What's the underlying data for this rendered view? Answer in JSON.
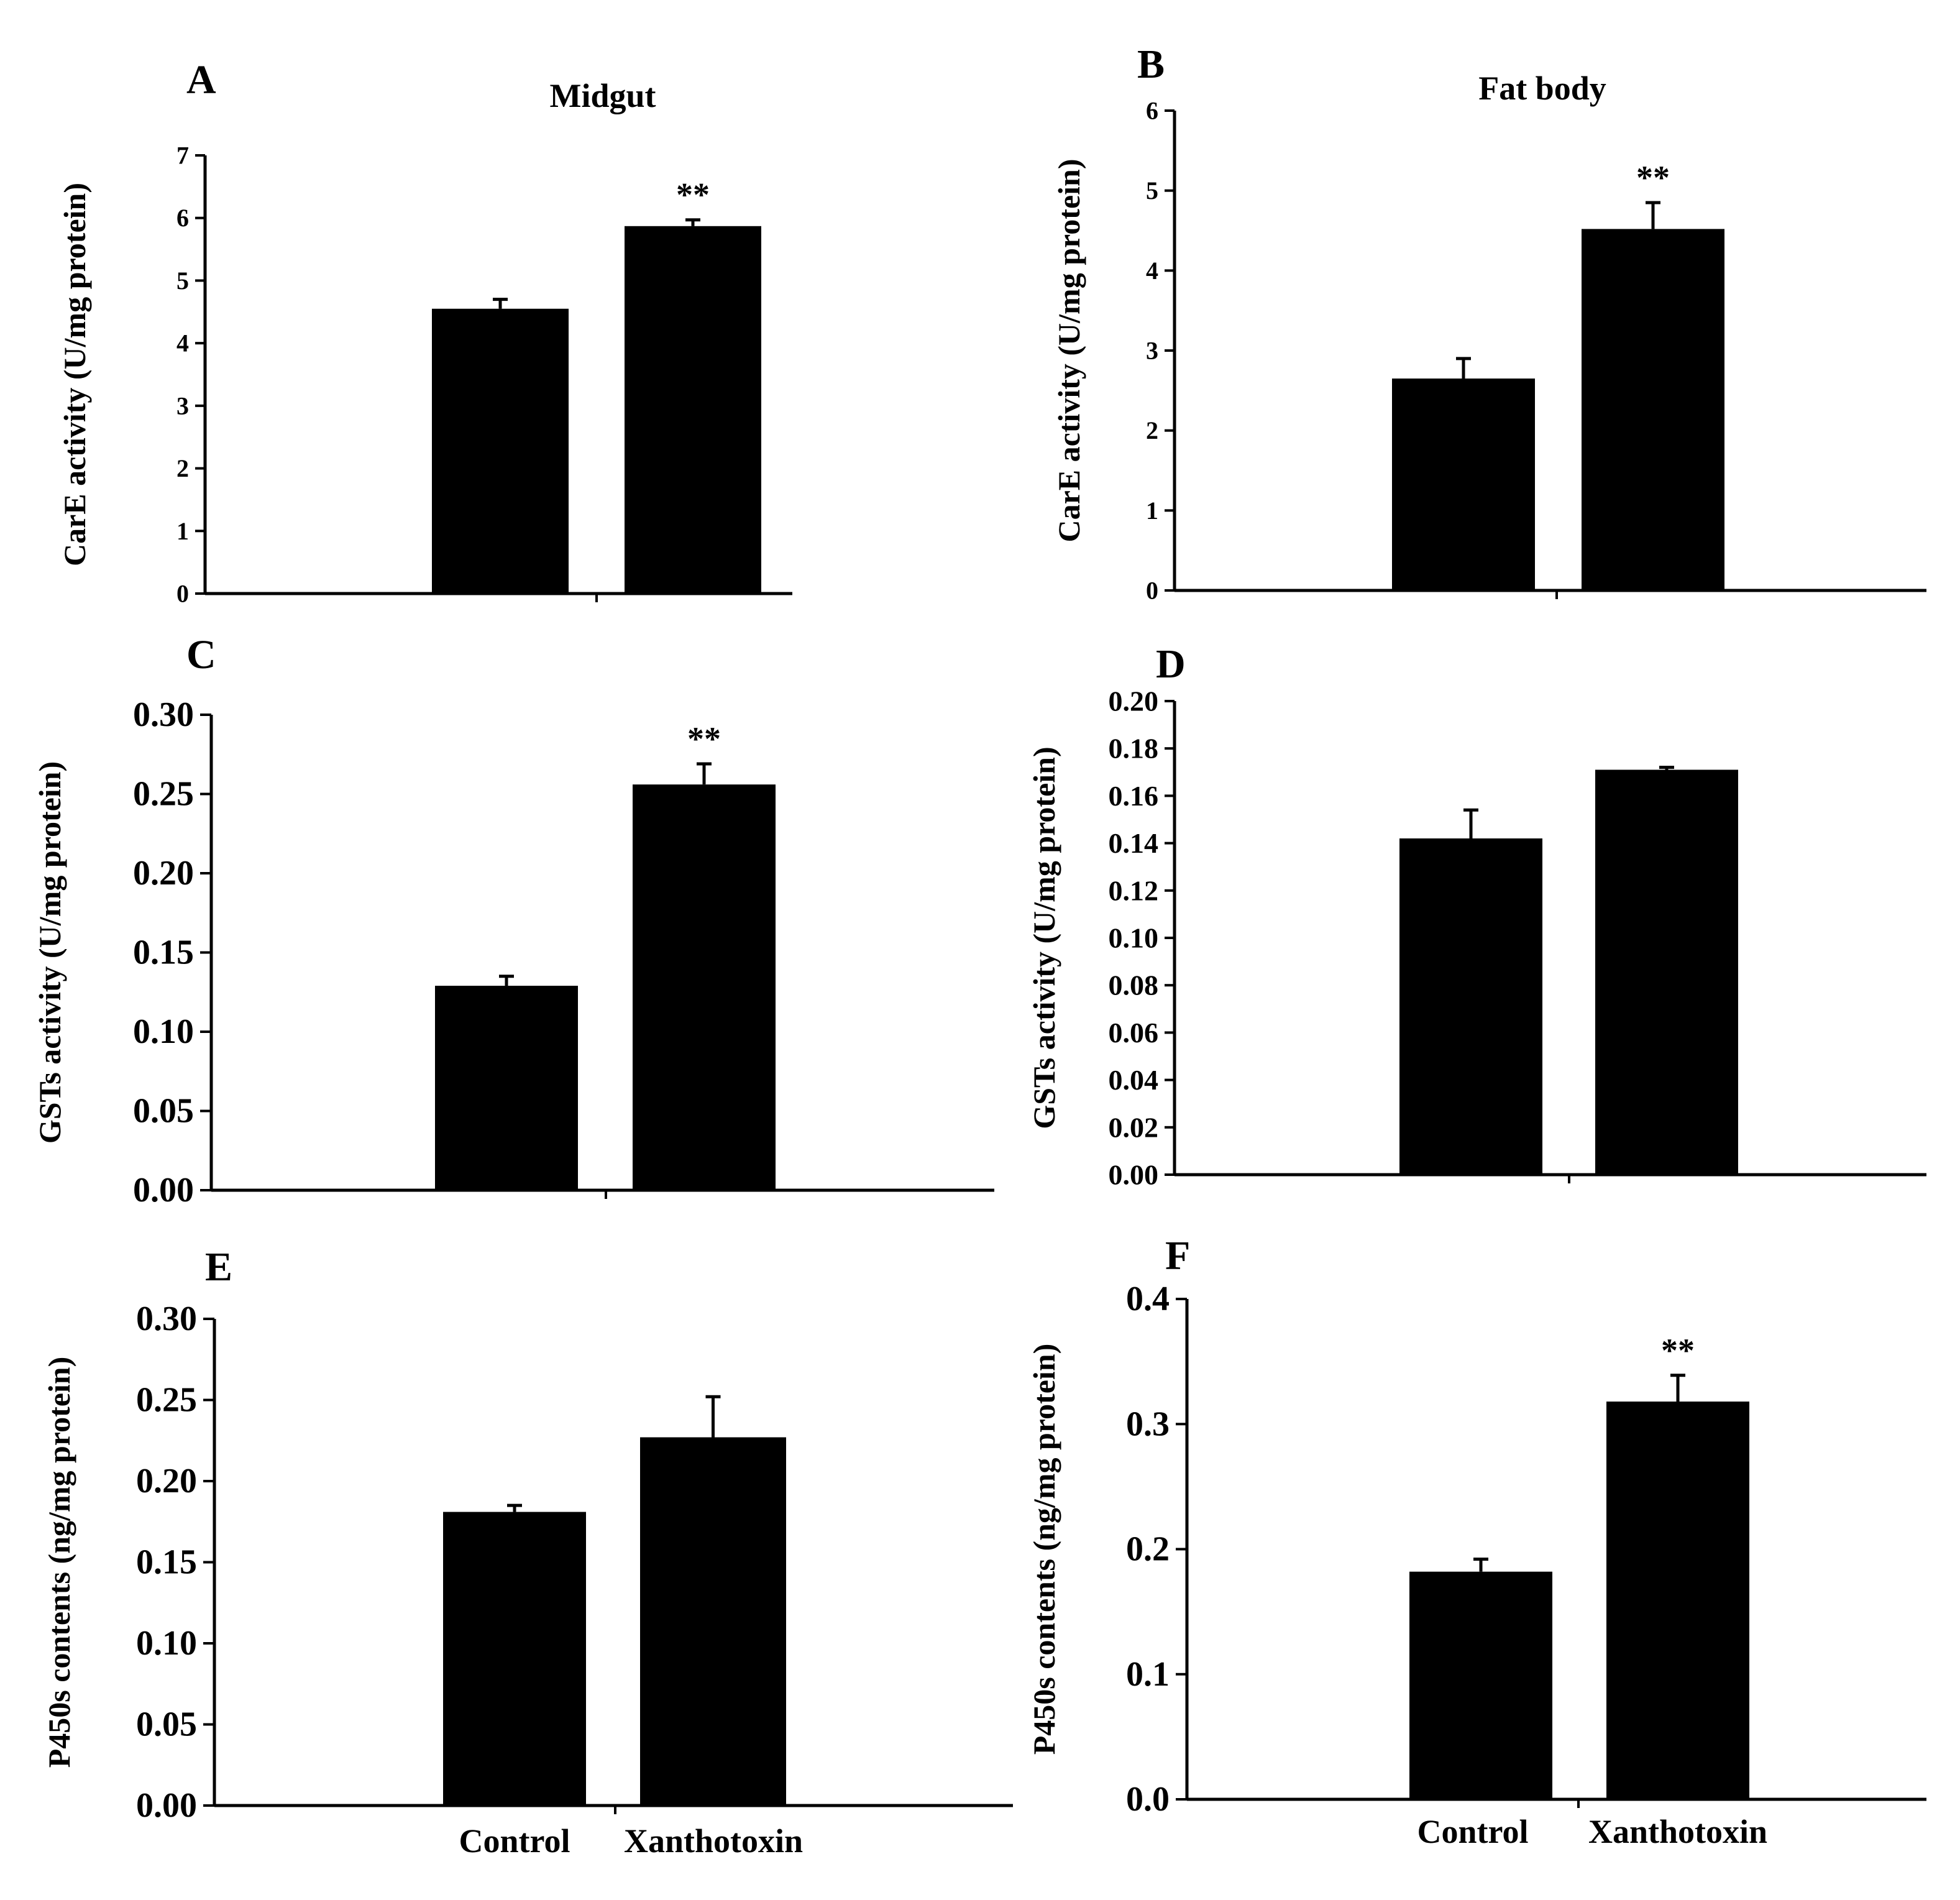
{
  "figure": {
    "columns": [
      {
        "title": "Midgut"
      },
      {
        "title": "Fat body"
      }
    ],
    "categories": [
      "Control",
      "Xanthotoxin"
    ]
  },
  "chart_data": [
    {
      "type": "bar",
      "panel": "A",
      "tissue": "Midgut",
      "ylabel": "CarE activity (U/mg protein)",
      "categories": [
        "Control",
        "Xanthotoxin"
      ],
      "values": [
        4.55,
        5.87
      ],
      "errors": [
        0.15,
        0.1
      ],
      "significance": [
        "",
        "**"
      ],
      "ylim": [
        0,
        7
      ],
      "ticks": [
        "0",
        "1",
        "2",
        "3",
        "4",
        "5",
        "6",
        "7"
      ]
    },
    {
      "type": "bar",
      "panel": "B",
      "tissue": "Fat body",
      "ylabel": "CarE activity (U/mg protein)",
      "categories": [
        "Control",
        "Xanthotoxin"
      ],
      "values": [
        2.65,
        4.52
      ],
      "errors": [
        0.25,
        0.33
      ],
      "significance": [
        "",
        "**"
      ],
      "ylim": [
        0,
        6
      ],
      "ticks": [
        "0",
        "1",
        "2",
        "3",
        "4",
        "5",
        "6"
      ]
    },
    {
      "type": "bar",
      "panel": "C",
      "tissue": "Midgut",
      "ylabel": "GSTs activity (U/mg protein)",
      "categories": [
        "Control",
        "Xanthotoxin"
      ],
      "values": [
        0.129,
        0.256
      ],
      "errors": [
        0.006,
        0.013
      ],
      "significance": [
        "",
        "**"
      ],
      "ylim": [
        0,
        0.3
      ],
      "ticks": [
        "0.00",
        "0.05",
        "0.10",
        "0.15",
        "0.20",
        "0.25",
        "0.30"
      ]
    },
    {
      "type": "bar",
      "panel": "D",
      "tissue": "Fat body",
      "ylabel": "GSTs activity (U/mg protein)",
      "categories": [
        "Control",
        "Xanthotoxin"
      ],
      "values": [
        0.142,
        0.171
      ],
      "errors": [
        0.012,
        0.001
      ],
      "significance": [
        "",
        ""
      ],
      "ylim": [
        0,
        0.2
      ],
      "ticks": [
        "0.00",
        "0.02",
        "0.04",
        "0.06",
        "0.08",
        "0.10",
        "0.12",
        "0.14",
        "0.16",
        "0.18",
        "0.20"
      ]
    },
    {
      "type": "bar",
      "panel": "E",
      "tissue": "Midgut",
      "ylabel": "P450s contents (ng/mg protein)",
      "categories": [
        "Control",
        "Xanthotoxin"
      ],
      "values": [
        0.181,
        0.227
      ],
      "errors": [
        0.004,
        0.025
      ],
      "significance": [
        "",
        ""
      ],
      "ylim": [
        0,
        0.3
      ],
      "ticks": [
        "0.00",
        "0.05",
        "0.10",
        "0.15",
        "0.20",
        "0.25",
        "0.30"
      ]
    },
    {
      "type": "bar",
      "panel": "F",
      "tissue": "Fat body",
      "ylabel": "P450s contents (ng/mg protein)",
      "categories": [
        "Control",
        "Xanthotoxin"
      ],
      "values": [
        0.182,
        0.318
      ],
      "errors": [
        0.01,
        0.021
      ],
      "significance": [
        "",
        "**"
      ],
      "ylim": [
        0,
        0.4
      ],
      "ticks": [
        "0.0",
        "0.1",
        "0.2",
        "0.3",
        "0.4"
      ]
    }
  ]
}
